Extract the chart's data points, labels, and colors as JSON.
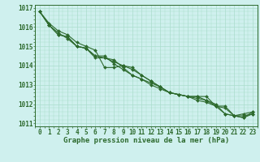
{
  "xlabel": "Graphe pression niveau de la mer (hPa)",
  "ylim": [
    1011,
    1017
  ],
  "xlim": [
    -0.5,
    23.5
  ],
  "yticks": [
    1011,
    1012,
    1013,
    1014,
    1015,
    1016,
    1017
  ],
  "xticks": [
    0,
    1,
    2,
    3,
    4,
    5,
    6,
    7,
    8,
    9,
    10,
    11,
    12,
    13,
    14,
    15,
    16,
    17,
    18,
    19,
    20,
    21,
    22,
    23
  ],
  "bg_color": "#cff0ee",
  "line_color": "#2d6a2d",
  "grid_color": "#aaddcc",
  "series": [
    [
      1016.8,
      1016.2,
      1015.8,
      1015.6,
      1015.2,
      1015.0,
      1014.8,
      1013.9,
      1013.9,
      1014.0,
      1013.9,
      1013.5,
      1013.2,
      1012.9,
      1012.6,
      1012.5,
      1012.4,
      1012.3,
      1012.2,
      1012.0,
      1011.5,
      1011.4,
      1011.5,
      1011.6
    ],
    [
      1016.8,
      1016.1,
      1015.6,
      1015.5,
      1015.0,
      1014.9,
      1014.4,
      1014.4,
      1014.2,
      1014.0,
      1013.8,
      1013.5,
      1013.2,
      1012.9,
      1012.6,
      1012.5,
      1012.4,
      1012.2,
      1012.1,
      1011.9,
      1011.5,
      1011.4,
      1011.3,
      1011.5
    ],
    [
      1016.8,
      1016.1,
      1015.7,
      1015.4,
      1015.0,
      1014.9,
      1014.5,
      1014.5,
      1014.1,
      1013.8,
      1013.5,
      1013.3,
      1013.0,
      1012.8,
      1012.6,
      1012.5,
      1012.4,
      1012.4,
      1012.4,
      1011.9,
      1011.8,
      1011.4,
      1011.3,
      1011.6
    ],
    [
      1016.8,
      1016.1,
      1015.6,
      1015.5,
      1015.0,
      1014.9,
      1014.5,
      1014.4,
      1014.3,
      1013.9,
      1013.5,
      1013.3,
      1013.1,
      1012.9,
      1012.6,
      1012.5,
      1012.4,
      1012.4,
      1012.2,
      1011.9,
      1011.9,
      1011.4,
      1011.4,
      1011.5
    ]
  ],
  "marker": "D",
  "markersize": 2.0,
  "linewidth": 0.8,
  "tick_fontsize": 5.5,
  "label_fontsize": 6.5,
  "tick_color": "#2d6a2d",
  "label_color": "#2d6a2d"
}
